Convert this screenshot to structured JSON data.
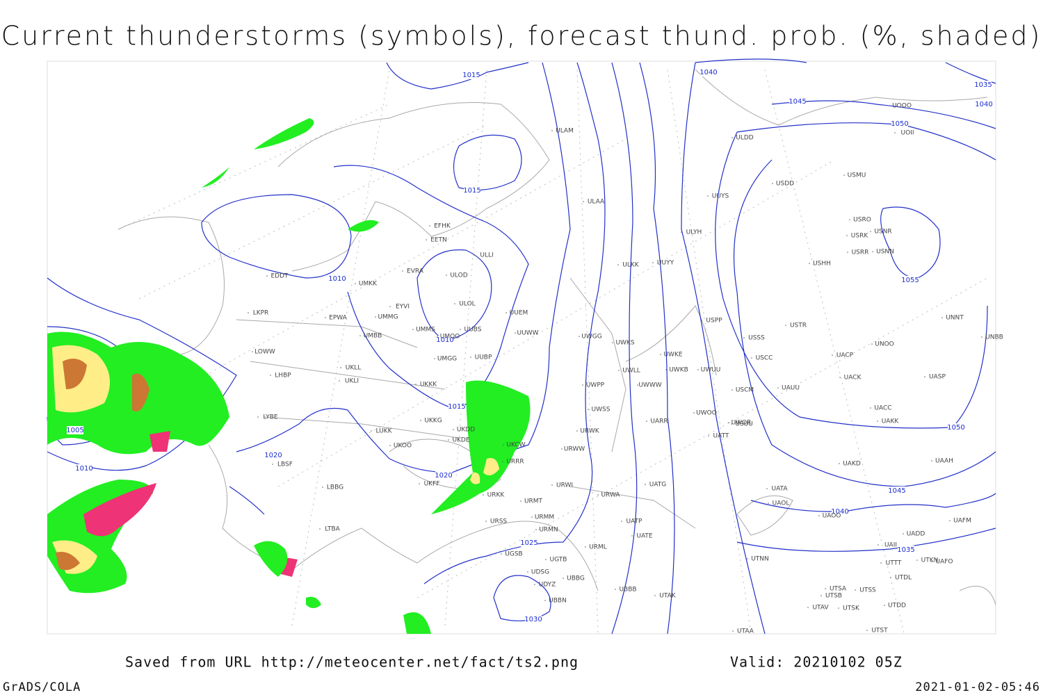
{
  "title": "Current thunderstorms (symbols), forecast thund. prob. (%, shaded)",
  "isobar_labels": [
    1015,
    1015,
    1010,
    1010,
    1005,
    1010,
    1015,
    1020,
    1020,
    1025,
    1030,
    1040,
    1045,
    1050,
    1035,
    1040,
    1055,
    1050,
    1045,
    1040,
    1035
  ],
  "stations": [
    "EFHK",
    "EETN",
    "EVRA",
    "ULLI",
    "ULOD",
    "ULOL",
    "UUEM",
    "UUWW",
    "UMMS",
    "UMOO",
    "UUBS",
    "EYVI",
    "UMMG",
    "UMKK",
    "EDDT",
    "EPWA",
    "LKPR",
    "UMBB",
    "LOWW",
    "LHBP",
    "UKLL",
    "UKLI",
    "UMGG",
    "UUBP",
    "UKKK",
    "LYBE",
    "LUKK",
    "UKKG",
    "UKDD",
    "UKDE",
    "UKCW",
    "UKOO",
    "URRR",
    "LBSF",
    "UKFF",
    "LBBG",
    "URKK",
    "URMT",
    "URMM",
    "URSS",
    "URMN",
    "LTBA",
    "UGSB",
    "UGTB",
    "UDSG",
    "UBBG",
    "UBBN",
    "UDYZ",
    "ULAA",
    "ULAM",
    "UUYY",
    "ULKK",
    "UWGG",
    "UWKS",
    "UWKE",
    "UWLL",
    "UWKB",
    "UWUU",
    "UWPP",
    "UWWW",
    "UWSS",
    "URWK",
    "URWW",
    "URWI",
    "UWOO",
    "USCM",
    "UATT",
    "USSS",
    "USCC",
    "USPP",
    "UATG",
    "URWA",
    "UATE",
    "UATP",
    "URML",
    "UBBB",
    "UTAK",
    "UTAA",
    "UTNN",
    "UAOL",
    "UATA",
    "UAOO",
    "UARR",
    "UAUU",
    "USTR",
    "UAKD",
    "UACK",
    "UACP",
    "UACC",
    "UAKK",
    "UASP",
    "UNOO",
    "USHH",
    "USRR",
    "USNN",
    "USRK",
    "USNR",
    "USRO",
    "USMU",
    "USDD",
    "UUYS",
    "ULDD",
    "UOOO",
    "UOII",
    "UNNT",
    "UNBB",
    "UAAH",
    "UAFM",
    "UADD",
    "UAII",
    "UTTT",
    "UTDL",
    "UAFO",
    "UTKN",
    "UTSA",
    "UTSS",
    "UTSB",
    "UTAV",
    "UTSK",
    "UTDD",
    "UTST",
    "ULYH",
    "USUU",
    "UWOR"
  ],
  "footer": {
    "source": "Saved from URL http://meteocenter.net/fact/ts2.png",
    "valid": "Valid: 20210102 05Z",
    "software": "GrADS/COLA",
    "timestamp": "2021-01-02-05:46"
  }
}
